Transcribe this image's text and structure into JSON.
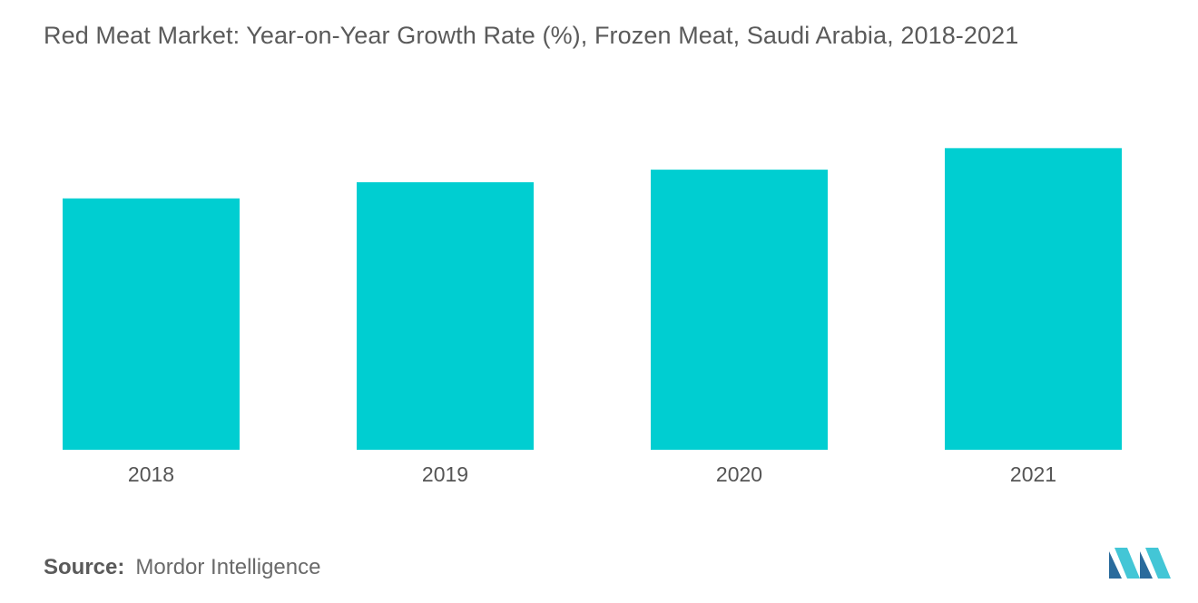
{
  "title": "Red Meat Market: Year-on-Year Growth Rate (%), Frozen Meat, Saudi Arabia, 2018-2021",
  "source": {
    "label": "Source:",
    "value": "Mordor Intelligence"
  },
  "logo": {
    "icon": "mordor-intelligence-logo-icon",
    "colors": [
      "#2a6b9c",
      "#43c6d6"
    ]
  },
  "colors": {
    "bar": "#00ced1",
    "text": "#555555"
  },
  "chart_data": {
    "type": "bar",
    "title": "Red Meat Market: Year-on-Year Growth Rate (%), Frozen Meat, Saudi Arabia, 2018-2021",
    "categories": [
      "2018",
      "2019",
      "2020",
      "2021"
    ],
    "values": [
      7.0,
      7.45,
      7.8,
      8.4
    ],
    "xlabel": "",
    "ylabel": "",
    "ylim": [
      0,
      10
    ],
    "grid": false,
    "legend": "none",
    "data_labels": false
  }
}
